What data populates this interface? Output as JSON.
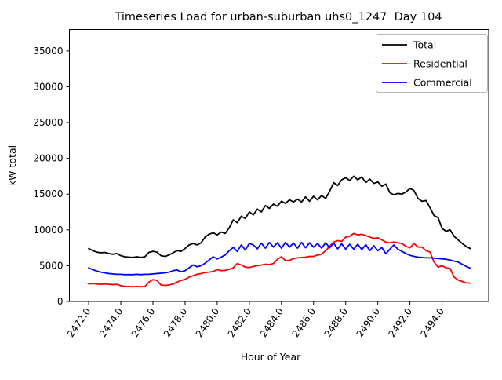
{
  "chart_data": {
    "type": "line",
    "title": "Timeseries Load for urban-suburban uhs0_1247  Day 104",
    "xlabel": "Hour of Year",
    "ylabel": "kW total",
    "xlim": [
      2470.8,
      2496.9
    ],
    "ylim": [
      0,
      38000
    ],
    "grid": false,
    "legend_position": "upper right",
    "x_ticks": [
      2472,
      2474,
      2476,
      2478,
      2480,
      2482,
      2484,
      2486,
      2488,
      2490,
      2492,
      2494
    ],
    "x_tick_labels": [
      "2472.0",
      "2474.0",
      "2476.0",
      "2478.0",
      "2480.0",
      "2482.0",
      "2484.0",
      "2486.0",
      "2488.0",
      "2490.0",
      "2492.0",
      "2494.0"
    ],
    "y_ticks": [
      0,
      5000,
      10000,
      15000,
      20000,
      25000,
      30000,
      35000
    ],
    "y_tick_labels": [
      "0",
      "5000",
      "10000",
      "15000",
      "20000",
      "25000",
      "30000",
      "35000"
    ],
    "x": [
      2472.0,
      2472.25,
      2472.5,
      2472.75,
      2473.0,
      2473.25,
      2473.5,
      2473.75,
      2474.0,
      2474.25,
      2474.5,
      2474.75,
      2475.0,
      2475.25,
      2475.5,
      2475.75,
      2476.0,
      2476.25,
      2476.5,
      2476.75,
      2477.0,
      2477.25,
      2477.5,
      2477.75,
      2478.0,
      2478.25,
      2478.5,
      2478.75,
      2479.0,
      2479.25,
      2479.5,
      2479.75,
      2480.0,
      2480.25,
      2480.5,
      2480.75,
      2481.0,
      2481.25,
      2481.5,
      2481.75,
      2482.0,
      2482.25,
      2482.5,
      2482.75,
      2483.0,
      2483.25,
      2483.5,
      2483.75,
      2484.0,
      2484.25,
      2484.5,
      2484.75,
      2485.0,
      2485.25,
      2485.5,
      2485.75,
      2486.0,
      2486.25,
      2486.5,
      2486.75,
      2487.0,
      2487.25,
      2487.5,
      2487.75,
      2488.0,
      2488.25,
      2488.5,
      2488.75,
      2489.0,
      2489.25,
      2489.5,
      2489.75,
      2490.0,
      2490.25,
      2490.5,
      2490.75,
      2491.0,
      2491.25,
      2491.5,
      2491.75,
      2492.0,
      2492.25,
      2492.5,
      2492.75,
      2493.0,
      2493.25,
      2493.5,
      2493.75,
      2494.0,
      2494.25,
      2494.5,
      2494.75,
      2495.0,
      2495.25,
      2495.5,
      2495.75
    ],
    "series": [
      {
        "name": "Total",
        "color": "#000000",
        "values": [
          7400,
          7100,
          6900,
          6800,
          6850,
          6700,
          6600,
          6700,
          6400,
          6250,
          6200,
          6150,
          6250,
          6150,
          6250,
          6850,
          7000,
          6900,
          6400,
          6300,
          6500,
          6800,
          7100,
          7000,
          7400,
          7900,
          8100,
          7900,
          8200,
          9000,
          9400,
          9600,
          9300,
          9700,
          9500,
          10300,
          11400,
          11000,
          11900,
          11600,
          12500,
          12100,
          12900,
          12500,
          13400,
          13000,
          13600,
          13300,
          14000,
          13700,
          14200,
          13900,
          14300,
          13900,
          14600,
          14000,
          14700,
          14200,
          14800,
          14400,
          15400,
          16600,
          16200,
          17000,
          17300,
          16900,
          17500,
          17000,
          17400,
          16600,
          17100,
          16500,
          16700,
          16100,
          16400,
          15200,
          14900,
          15100,
          15000,
          15300,
          15800,
          15500,
          14400,
          14000,
          14100,
          13100,
          12000,
          11700,
          10200,
          9800,
          10000,
          9100,
          8600,
          8100,
          7700,
          7400
        ]
      },
      {
        "name": "Residential",
        "color": "#ff0000",
        "values": [
          2450,
          2500,
          2450,
          2400,
          2450,
          2400,
          2350,
          2400,
          2200,
          2100,
          2100,
          2050,
          2100,
          2050,
          2100,
          2700,
          3050,
          2950,
          2300,
          2250,
          2300,
          2450,
          2700,
          2950,
          3100,
          3400,
          3600,
          3800,
          3900,
          4050,
          4100,
          4200,
          4450,
          4300,
          4350,
          4500,
          4700,
          5300,
          5100,
          4800,
          4750,
          4900,
          5000,
          5100,
          5200,
          5150,
          5300,
          5900,
          6250,
          5700,
          5750,
          6000,
          6100,
          6150,
          6200,
          6300,
          6300,
          6500,
          6600,
          7100,
          7700,
          8300,
          8500,
          8400,
          9000,
          9100,
          9500,
          9300,
          9400,
          9200,
          9000,
          8800,
          8900,
          8600,
          8300,
          8200,
          8300,
          8200,
          8100,
          7700,
          7500,
          8100,
          7600,
          7600,
          7100,
          6900,
          5500,
          4800,
          5000,
          4700,
          4600,
          3400,
          3000,
          2800,
          2600,
          2550
        ]
      },
      {
        "name": "Commercial",
        "color": "#0000ff",
        "values": [
          4700,
          4450,
          4250,
          4100,
          4000,
          3900,
          3850,
          3800,
          3800,
          3750,
          3750,
          3750,
          3800,
          3750,
          3800,
          3800,
          3850,
          3900,
          3950,
          4000,
          4100,
          4300,
          4400,
          4150,
          4300,
          4700,
          5100,
          4850,
          5000,
          5350,
          5800,
          6250,
          5950,
          6200,
          6500,
          7100,
          7550,
          7000,
          7900,
          7200,
          8100,
          7900,
          7350,
          8150,
          7450,
          8250,
          7600,
          8200,
          7450,
          8250,
          7600,
          8150,
          7450,
          8250,
          7500,
          8200,
          7600,
          8100,
          7450,
          8200,
          7500,
          8150,
          7350,
          8050,
          7300,
          8000,
          7300,
          8000,
          7250,
          7950,
          7100,
          7800,
          7100,
          7550,
          6650,
          7300,
          7900,
          7300,
          7000,
          6700,
          6450,
          6300,
          6200,
          6150,
          6100,
          6100,
          6050,
          6000,
          5950,
          5900,
          5800,
          5650,
          5500,
          5200,
          4900,
          4650
        ]
      }
    ]
  }
}
